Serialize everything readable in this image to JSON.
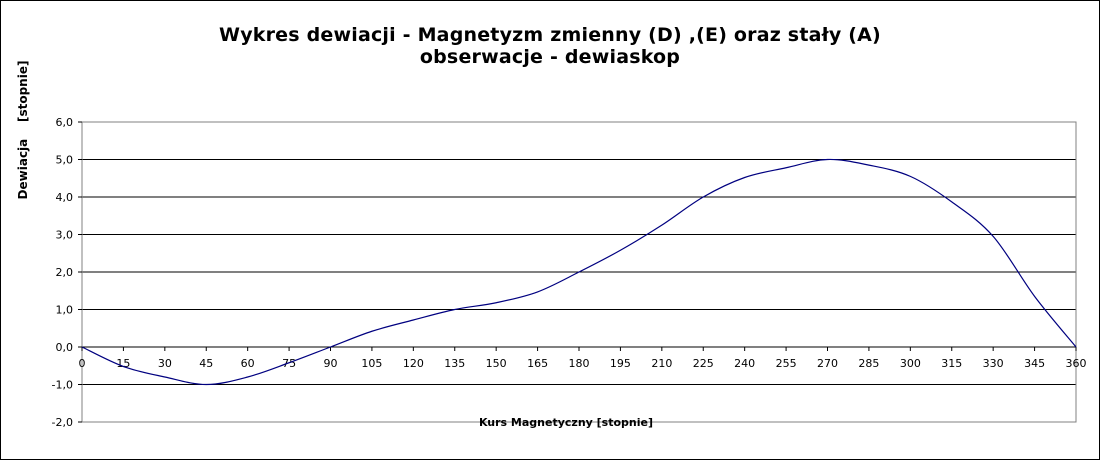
{
  "chart_data": {
    "type": "line",
    "title": "Wykres dewiacji  - Magnetyzm zmienny  (D) ,(E) oraz stały  (A)",
    "subtitle": "obserwacje - dewiaskop",
    "xlabel": "Kurs Magnetyczny   [stopnie]",
    "ylabel": "Dewiacja    [stopnie]",
    "xlim": [
      0,
      360
    ],
    "ylim": [
      -2,
      6
    ],
    "x_ticks": [
      0,
      15,
      30,
      45,
      60,
      75,
      90,
      105,
      120,
      135,
      150,
      165,
      180,
      195,
      210,
      225,
      240,
      255,
      270,
      285,
      300,
      315,
      330,
      345,
      360
    ],
    "y_ticks": [
      "-2,0",
      "-1,0",
      "0,0",
      "1,0",
      "2,0",
      "3,0",
      "4,0",
      "5,0",
      "6,0"
    ],
    "grid": "horizontal",
    "legend": "none",
    "line_color": "#000080",
    "series": [
      {
        "x": [
          0,
          15,
          30,
          45,
          60,
          75,
          90,
          105,
          120,
          135,
          150,
          165,
          180,
          195,
          210,
          225,
          240,
          255,
          270,
          285,
          300,
          315,
          330,
          345,
          360
        ],
        "values": [
          0.0,
          -0.52,
          -0.8,
          -1.0,
          -0.8,
          -0.42,
          0.0,
          0.42,
          0.72,
          1.0,
          1.18,
          1.47,
          2.0,
          2.58,
          3.25,
          4.0,
          4.52,
          4.78,
          5.0,
          4.85,
          4.55,
          3.87,
          2.95,
          1.35,
          0.0
        ]
      }
    ]
  }
}
